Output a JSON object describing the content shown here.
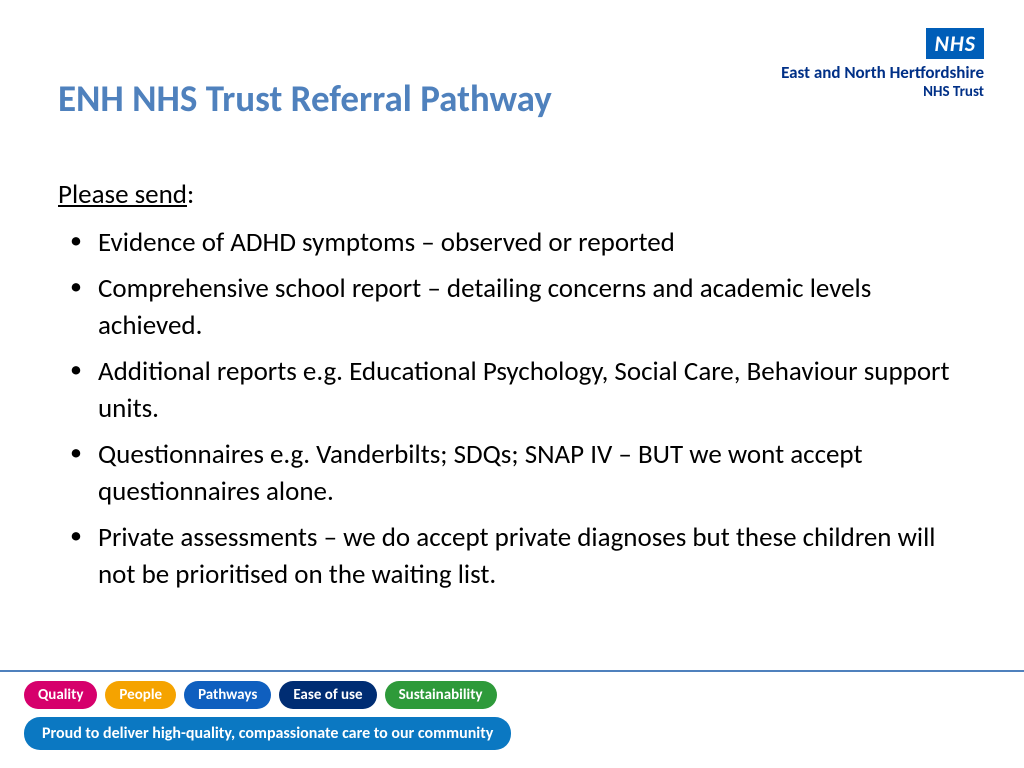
{
  "logo": {
    "box_text": "NHS",
    "box_bg": "#005eb8",
    "box_fg": "#ffffff",
    "trust_line1": "East and North Hertfordshire",
    "trust_line2": "NHS Trust",
    "trust_color": "#003087"
  },
  "title": {
    "text": "ENH NHS Trust Referral Pathway",
    "color": "#4f81bd",
    "fontsize": 37
  },
  "intro": {
    "underlined": "Please send",
    "suffix": ":"
  },
  "bullets": [
    "Evidence of ADHD symptoms – observed or reported",
    "Comprehensive school report – detailing concerns and academic levels achieved.",
    "Additional reports e.g. Educational Psychology, Social Care, Behaviour support units.",
    "Questionnaires e.g. Vanderbilts; SDQs; SNAP IV – BUT we wont accept questionnaires alone.",
    "Private assessments – we do accept private diagnoses but these children will not be prioritised on the waiting list."
  ],
  "body_fontsize": 27,
  "divider_color": "#4f81bd",
  "pills": [
    {
      "label": "Quality",
      "bg": "#d6006c"
    },
    {
      "label": "People",
      "bg": "#f5a300"
    },
    {
      "label": "Pathways",
      "bg": "#0f5fbf"
    },
    {
      "label": "Ease of use",
      "bg": "#002d73"
    },
    {
      "label": "Sustainability",
      "bg": "#2e9a3a"
    }
  ],
  "strapline": {
    "text": "Proud to deliver high-quality, compassionate care to our community",
    "bg": "#0b78c2"
  },
  "background_color": "#ffffff"
}
